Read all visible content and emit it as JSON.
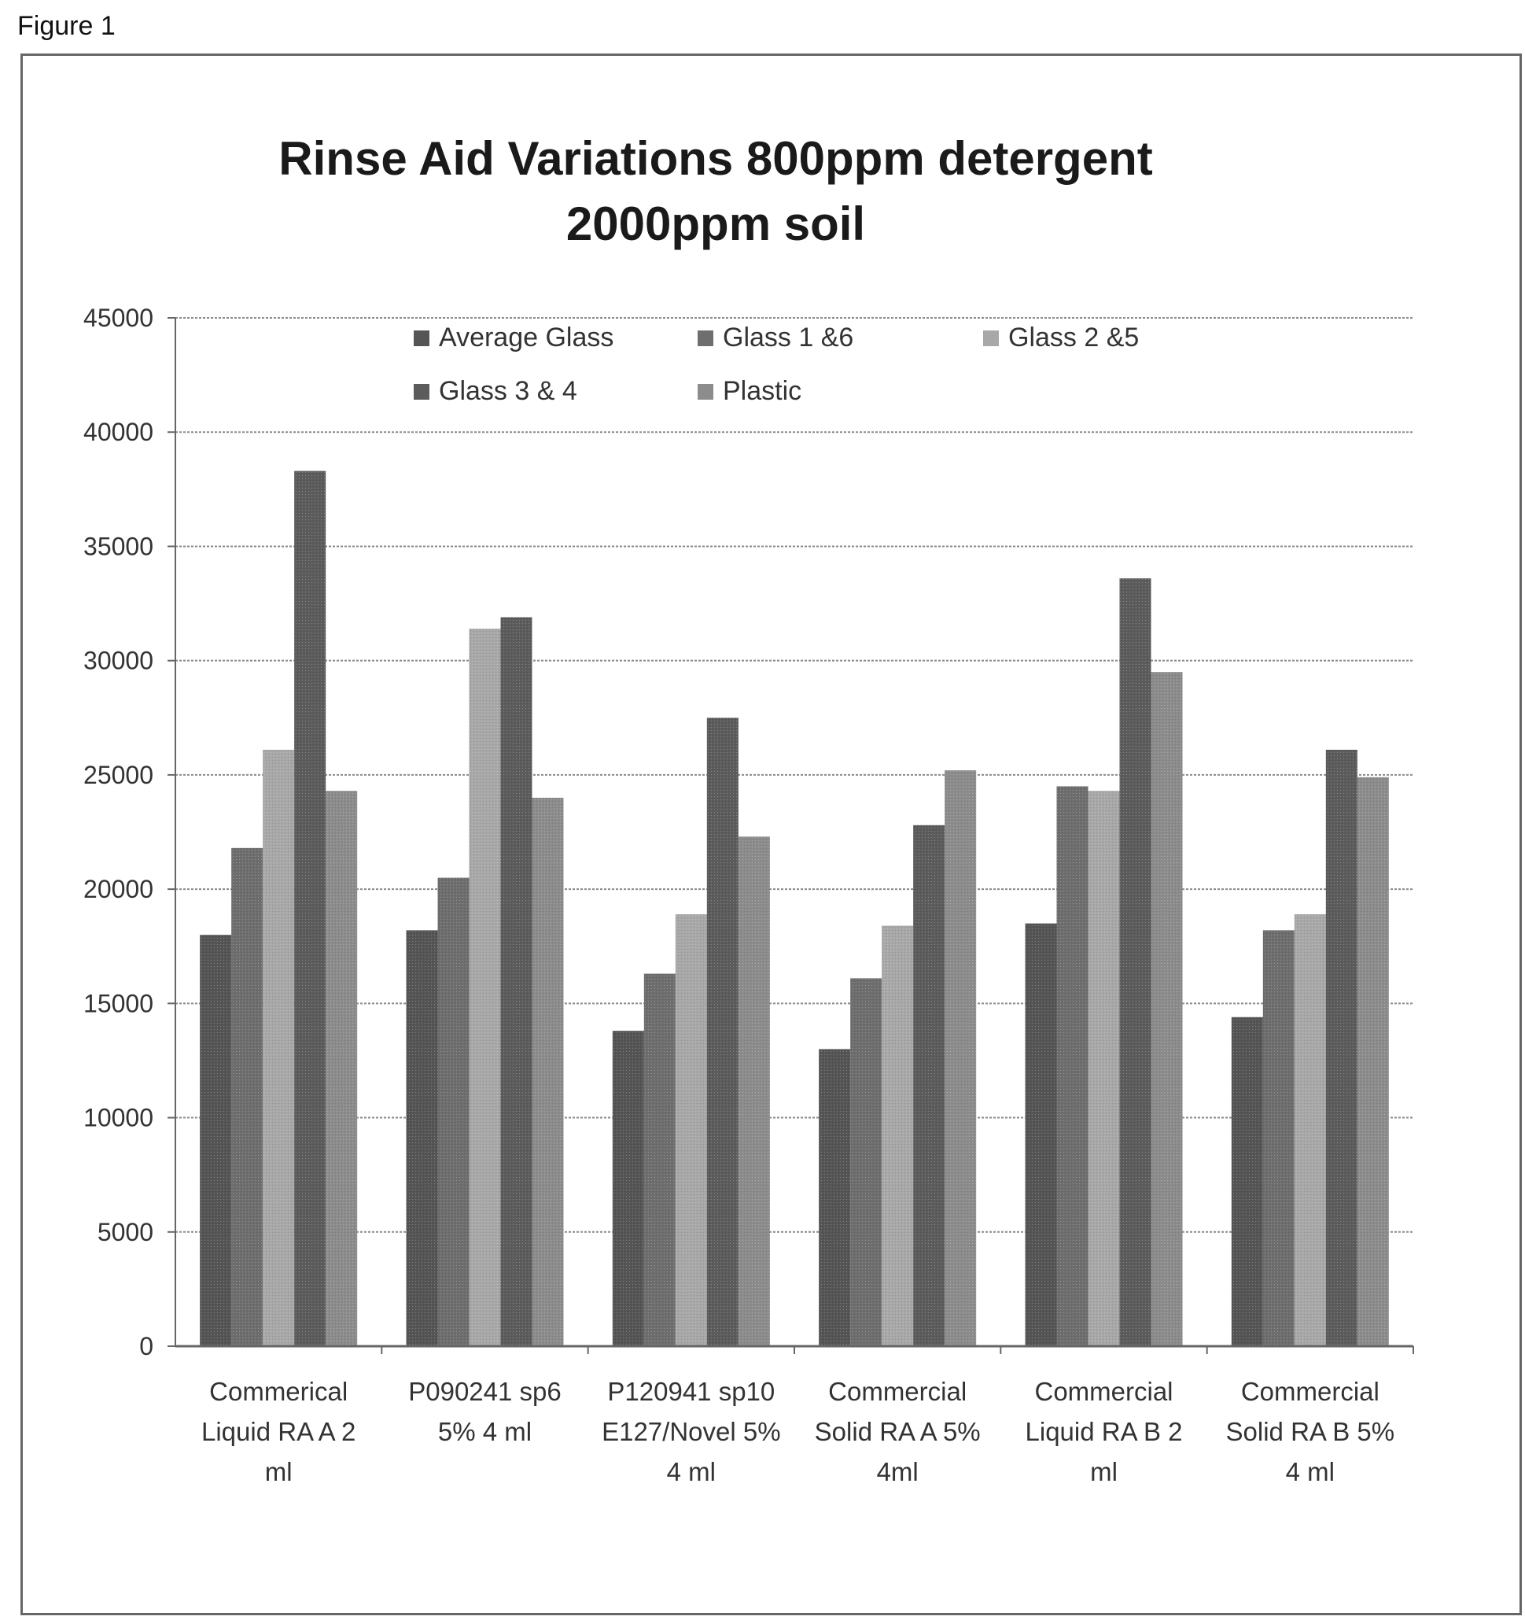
{
  "figure_label": "Figure 1",
  "chart_data": {
    "type": "bar",
    "title": "Rinse Aid Variations 800ppm detergent 2000ppm soil",
    "title_lines": [
      "Rinse Aid Variations 800ppm detergent",
      "2000ppm soil"
    ],
    "xlabel": "",
    "ylabel": "",
    "ylim": [
      0,
      45000
    ],
    "yticks": [
      0,
      5000,
      10000,
      15000,
      20000,
      25000,
      30000,
      35000,
      40000,
      45000
    ],
    "grid": true,
    "legend_position": "top",
    "categories": [
      [
        "Commerical",
        "Liquid RA A 2",
        "ml"
      ],
      [
        "P090241 sp6",
        "5% 4 ml"
      ],
      [
        "P120941 sp10",
        "E127/Novel 5%",
        "4 ml"
      ],
      [
        "Commercial",
        "Solid RA A 5%",
        "4ml"
      ],
      [
        "Commercial",
        "Liquid RA B 2",
        "ml"
      ],
      [
        "Commercial",
        "Solid RA B 5%",
        "4 ml"
      ]
    ],
    "series": [
      {
        "name": "Average Glass",
        "color": "#555555",
        "values": [
          18000,
          18200,
          13800,
          13000,
          18500,
          14400
        ]
      },
      {
        "name": "Glass 1 &6",
        "color": "#6e6e6e",
        "values": [
          21800,
          20500,
          16300,
          16100,
          24500,
          18200
        ]
      },
      {
        "name": "Glass 2 &5",
        "color": "#a8a8a8",
        "values": [
          26100,
          31400,
          18900,
          18400,
          24300,
          18900
        ]
      },
      {
        "name": "Glass 3 & 4",
        "color": "#5c5c5c",
        "values": [
          38300,
          31900,
          27500,
          22800,
          33600,
          26100
        ]
      },
      {
        "name": "Plastic",
        "color": "#8c8c8c",
        "values": [
          24300,
          24000,
          22300,
          25200,
          29500,
          24900
        ]
      }
    ]
  }
}
